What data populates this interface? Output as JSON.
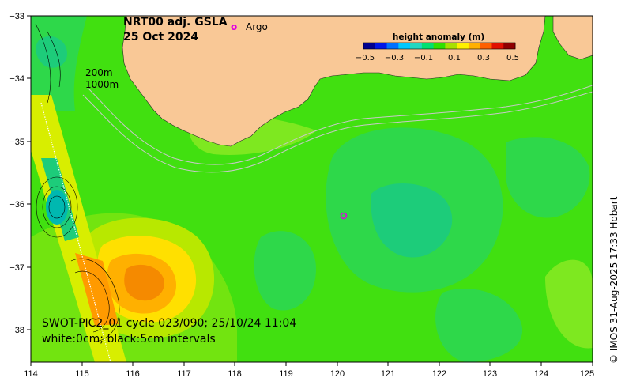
{
  "title": {
    "line1": "NRT00 adj. GSLA",
    "line2": "25 Oct 2024"
  },
  "legend": {
    "argo_marker": "o",
    "argo_label": "Argo"
  },
  "colorbar": {
    "title": "height anomaly (m)",
    "ticks": [
      "−0.5",
      "−0.3",
      "−0.1",
      "0.1",
      "0.3",
      "0.5"
    ],
    "colors": [
      "#00008f",
      "#0016e8",
      "#0070ff",
      "#00c8ff",
      "#20d7c0",
      "#00e070",
      "#30e000",
      "#a8e000",
      "#fff000",
      "#ffb000",
      "#ff6000",
      "#e01000",
      "#8f0000"
    ]
  },
  "contour_labels": {
    "shallow": "200m",
    "deep": "1000m"
  },
  "swot": {
    "line1": "SWOT-PIC2_01 cycle 023/090; 25/10/24 11:04",
    "line2": "white:0cm; black:5cm intervals"
  },
  "credit": "© IMOS 31-Aug-2025 17:33 Hobart",
  "axes": {
    "x_ticks": [
      "114",
      "115",
      "116",
      "117",
      "118",
      "119",
      "120",
      "121",
      "122",
      "123",
      "124",
      "125"
    ],
    "y_ticks": [
      "−33",
      "−34",
      "−35",
      "−36",
      "−37",
      "−38"
    ]
  },
  "colors": {
    "land": "#f9c896",
    "sea_base": "#41e010"
  }
}
